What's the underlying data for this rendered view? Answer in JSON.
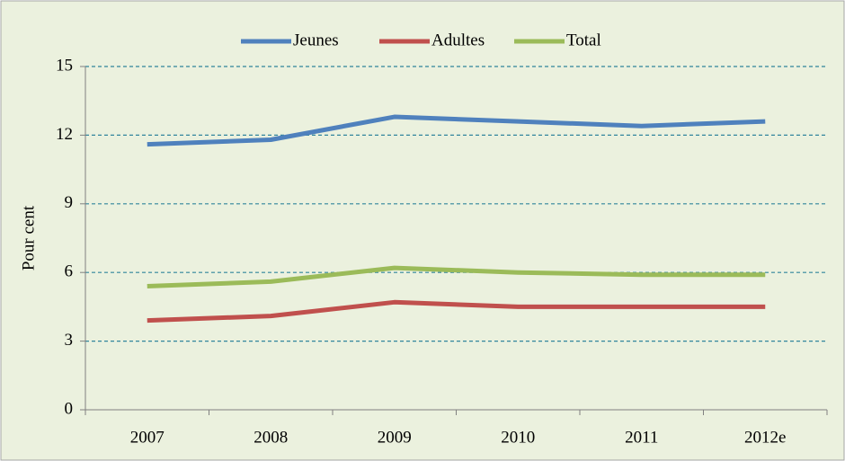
{
  "chart_data": {
    "type": "line",
    "y_label": "Pour cent",
    "categories": [
      "2007",
      "2008",
      "2009",
      "2010",
      "2011",
      "2012e"
    ],
    "series": [
      {
        "name": "Jeunes",
        "color": "#4f81bd",
        "values": [
          11.6,
          11.8,
          12.8,
          12.6,
          12.4,
          12.6
        ]
      },
      {
        "name": "Adultes",
        "color": "#c0504d",
        "values": [
          3.9,
          4.1,
          4.7,
          4.5,
          4.5,
          4.5
        ]
      },
      {
        "name": "Total",
        "color": "#9bbb59",
        "values": [
          5.4,
          5.6,
          6.2,
          6.0,
          5.9,
          5.9
        ]
      }
    ],
    "ylim": [
      0,
      15
    ],
    "yticks": [
      0,
      3,
      6,
      9,
      12,
      15
    ],
    "grid": true,
    "legend": "top"
  }
}
